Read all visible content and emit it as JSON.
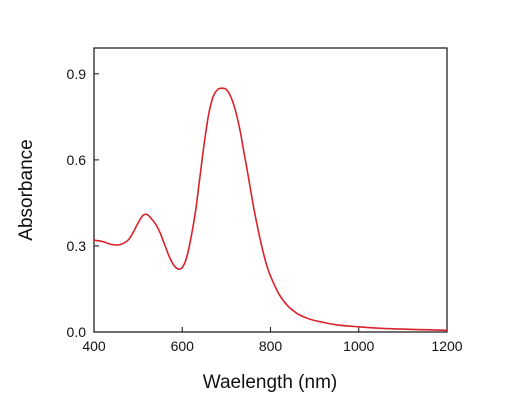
{
  "chart_data": {
    "type": "line",
    "title": "",
    "xlabel": "Waelength (nm)",
    "ylabel": "Absorbance",
    "xlim": [
      400,
      1200
    ],
    "ylim": [
      0.0,
      0.99
    ],
    "x_ticks": [
      400,
      600,
      800,
      1000,
      1200
    ],
    "x_tick_labels": [
      "400",
      "600",
      "800",
      "1000",
      "1200"
    ],
    "y_ticks": [
      0.0,
      0.3,
      0.6,
      0.9
    ],
    "y_tick_labels": [
      "0.0",
      "0.3",
      "0.6",
      "0.9"
    ],
    "grid": false,
    "legend": "none",
    "line_color": "#d8232a",
    "series": [
      {
        "x": [
          400,
          420,
          440,
          460,
          480,
          500,
          510,
          520,
          530,
          540,
          550,
          560,
          570,
          580,
          590,
          600,
          610,
          620,
          630,
          640,
          650,
          660,
          670,
          680,
          690,
          700,
          710,
          720,
          730,
          740,
          750,
          760,
          770,
          780,
          790,
          800,
          820,
          840,
          860,
          880,
          900,
          950,
          1000,
          1050,
          1100,
          1150,
          1200
        ],
        "y": [
          0.32,
          0.315,
          0.305,
          0.305,
          0.325,
          0.38,
          0.405,
          0.41,
          0.395,
          0.375,
          0.345,
          0.305,
          0.265,
          0.235,
          0.22,
          0.225,
          0.26,
          0.33,
          0.42,
          0.54,
          0.66,
          0.76,
          0.82,
          0.845,
          0.85,
          0.845,
          0.82,
          0.775,
          0.71,
          0.625,
          0.54,
          0.45,
          0.37,
          0.3,
          0.24,
          0.195,
          0.13,
          0.09,
          0.065,
          0.05,
          0.04,
          0.025,
          0.018,
          0.013,
          0.01,
          0.008,
          0.006
        ]
      }
    ]
  }
}
